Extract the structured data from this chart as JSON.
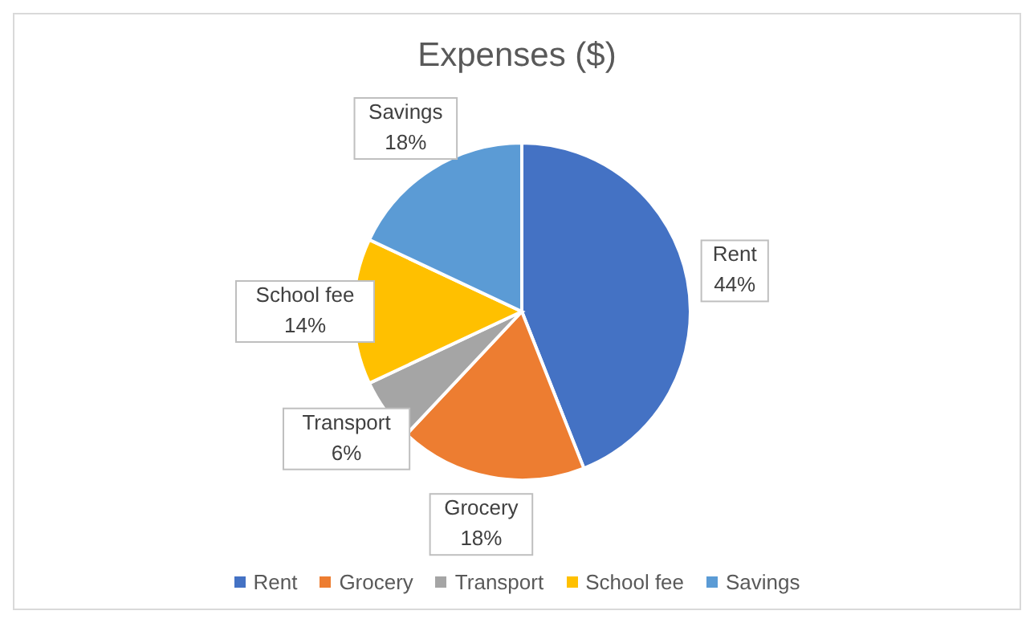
{
  "chart_data": {
    "type": "pie",
    "title": "Expenses ($)",
    "categories": [
      "Rent",
      "Grocery",
      "Transport",
      "School fee",
      "Savings"
    ],
    "values": [
      44,
      18,
      6,
      14,
      18
    ],
    "colors": [
      "#4472c4",
      "#ed7d31",
      "#a5a5a5",
      "#ffc000",
      "#5b9bd5"
    ],
    "value_labels": [
      "44%",
      "18%",
      "6%",
      "14%",
      "18%"
    ],
    "legend": "bottom"
  }
}
